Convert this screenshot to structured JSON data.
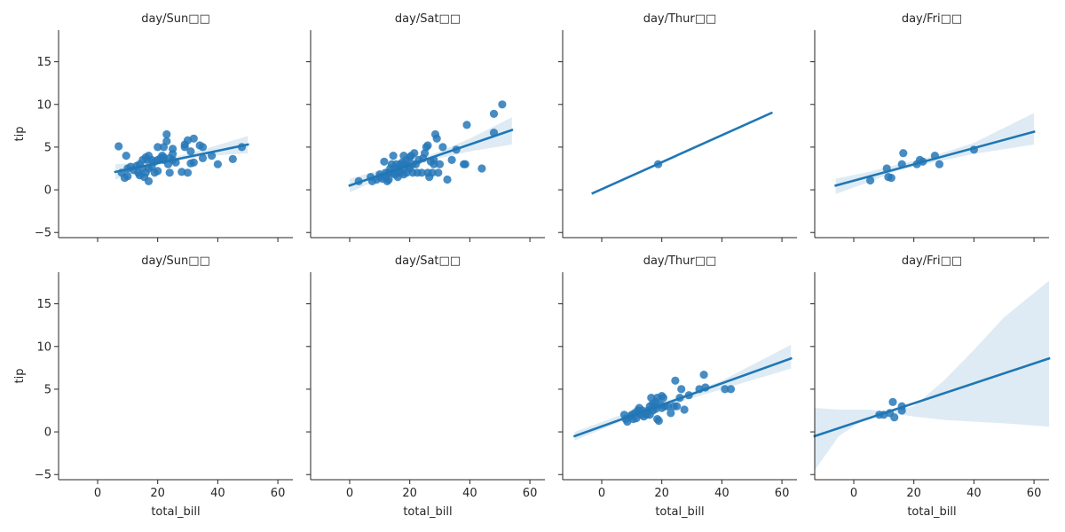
{
  "figure": {
    "colors": {
      "line": "#1f77b4",
      "point": "#2778b8",
      "band": "#1f77b4",
      "axis": "#262626"
    }
  },
  "chart_data": [
    {
      "type": "scatter",
      "title": "day/Sun□□",
      "xlabel": "",
      "ylabel": "tip",
      "xlim": [
        -13,
        65
      ],
      "ylim": [
        -5.6,
        18.7
      ],
      "xticks": [
        0,
        20,
        40,
        60
      ],
      "yticks": [
        -5,
        0,
        5,
        10,
        15
      ],
      "show_xtick_labels": false,
      "show_ytick_labels": true,
      "regression": {
        "x": [
          5.9,
          50
        ],
        "y": [
          2.1,
          5.3
        ]
      },
      "band": {
        "x": [
          5.9,
          15,
          25,
          35,
          50
        ],
        "lower": [
          1.2,
          2.4,
          3.3,
          3.9,
          4.3
        ],
        "upper": [
          3.0,
          3.2,
          3.8,
          4.7,
          6.3
        ]
      },
      "points": [
        [
          7,
          5.1
        ],
        [
          8,
          2
        ],
        [
          9,
          1.4
        ],
        [
          9.5,
          4
        ],
        [
          10,
          2.5
        ],
        [
          10,
          1.6
        ],
        [
          11,
          2.7
        ],
        [
          12,
          2.3
        ],
        [
          13,
          2.8
        ],
        [
          13.5,
          2
        ],
        [
          14,
          3
        ],
        [
          14,
          1.7
        ],
        [
          15,
          2.5
        ],
        [
          15,
          3.5
        ],
        [
          15.5,
          1.5
        ],
        [
          16,
          2
        ],
        [
          16,
          3.8
        ],
        [
          16.5,
          3.5
        ],
        [
          17,
          1
        ],
        [
          17,
          2.5
        ],
        [
          17,
          4
        ],
        [
          18,
          3.5
        ],
        [
          18,
          2.7
        ],
        [
          19,
          2
        ],
        [
          19,
          3.3
        ],
        [
          20,
          2.2
        ],
        [
          20,
          3.5
        ],
        [
          20,
          5
        ],
        [
          21,
          3.7
        ],
        [
          21.5,
          4
        ],
        [
          22,
          3.5
        ],
        [
          22,
          5
        ],
        [
          22,
          3.8
        ],
        [
          23,
          5.7
        ],
        [
          23,
          6.5
        ],
        [
          23.5,
          3
        ],
        [
          24,
          2
        ],
        [
          24,
          3.7
        ],
        [
          25,
          4.8
        ],
        [
          25,
          3.5
        ],
        [
          25,
          4.2
        ],
        [
          26,
          3.2
        ],
        [
          28,
          2.1
        ],
        [
          29,
          5
        ],
        [
          29,
          5.3
        ],
        [
          30,
          2
        ],
        [
          30,
          5.8
        ],
        [
          31,
          4.5
        ],
        [
          31,
          3.1
        ],
        [
          32,
          6
        ],
        [
          32,
          3.2
        ],
        [
          34,
          5.2
        ],
        [
          35,
          5
        ],
        [
          35,
          3.7
        ],
        [
          38,
          4
        ],
        [
          40,
          3
        ],
        [
          45,
          3.6
        ],
        [
          48,
          5
        ]
      ]
    },
    {
      "type": "scatter",
      "title": "day/Sat□□",
      "xlabel": "",
      "ylabel": "",
      "xlim": [
        -13,
        65
      ],
      "ylim": [
        -5.6,
        18.7
      ],
      "xticks": [
        0,
        20,
        40,
        60
      ],
      "yticks": [
        -5,
        0,
        5,
        10,
        15
      ],
      "show_xtick_labels": false,
      "show_ytick_labels": false,
      "regression": {
        "x": [
          0,
          54
        ],
        "y": [
          0.5,
          7.0
        ]
      },
      "band": {
        "x": [
          0,
          10,
          20,
          30,
          40,
          54
        ],
        "lower": [
          -0.3,
          1.3,
          2.7,
          3.7,
          4.5,
          5.3
        ],
        "upper": [
          1.3,
          2.3,
          3.2,
          4.5,
          6.0,
          8.5
        ]
      },
      "points": [
        [
          3,
          1
        ],
        [
          7,
          1.5
        ],
        [
          7.5,
          1
        ],
        [
          9,
          1.2
        ],
        [
          10,
          1.5
        ],
        [
          10,
          1.8
        ],
        [
          11,
          1.3
        ],
        [
          11.5,
          3.3
        ],
        [
          12,
          2
        ],
        [
          12,
          1.5
        ],
        [
          12.5,
          1
        ],
        [
          13,
          2
        ],
        [
          13,
          1.2
        ],
        [
          13.5,
          2.5
        ],
        [
          14,
          3
        ],
        [
          14,
          2
        ],
        [
          14.5,
          4
        ],
        [
          15,
          1.8
        ],
        [
          15,
          2.6
        ],
        [
          15.5,
          3
        ],
        [
          16,
          2
        ],
        [
          16,
          1.5
        ],
        [
          16.5,
          2.5
        ],
        [
          17,
          3
        ],
        [
          17,
          2
        ],
        [
          17.5,
          3.2
        ],
        [
          18,
          1.8
        ],
        [
          18,
          2.5
        ],
        [
          18,
          4
        ],
        [
          18.5,
          3
        ],
        [
          19,
          2
        ],
        [
          19,
          3.5
        ],
        [
          19.5,
          2.8
        ],
        [
          20,
          3.8
        ],
        [
          20,
          2.5
        ],
        [
          20.5,
          4
        ],
        [
          21,
          3
        ],
        [
          21,
          2
        ],
        [
          21.5,
          4.3
        ],
        [
          22,
          3
        ],
        [
          22.5,
          2
        ],
        [
          23,
          3.5
        ],
        [
          24,
          2
        ],
        [
          24.5,
          3.7
        ],
        [
          25,
          4.3
        ],
        [
          25.5,
          5
        ],
        [
          26,
          2
        ],
        [
          26,
          5.2
        ],
        [
          26.5,
          1.5
        ],
        [
          27,
          3.3
        ],
        [
          27.5,
          2
        ],
        [
          28,
          3
        ],
        [
          28,
          3.5
        ],
        [
          28.5,
          6.5
        ],
        [
          29,
          6
        ],
        [
          29.5,
          2
        ],
        [
          30,
          3
        ],
        [
          31,
          5
        ],
        [
          32.5,
          1.2
        ],
        [
          34,
          3.5
        ],
        [
          35.5,
          4.7
        ],
        [
          38,
          3
        ],
        [
          38.5,
          3
        ],
        [
          39,
          7.6
        ],
        [
          44,
          2.5
        ],
        [
          48,
          8.9
        ],
        [
          48,
          6.7
        ],
        [
          50.8,
          10
        ]
      ]
    },
    {
      "type": "scatter",
      "title": "day/Thur□□",
      "xlabel": "",
      "ylabel": "",
      "xlim": [
        -13,
        65
      ],
      "ylim": [
        -5.6,
        18.7
      ],
      "xticks": [
        0,
        20,
        40,
        60
      ],
      "yticks": [
        -5,
        0,
        5,
        10,
        15
      ],
      "show_xtick_labels": false,
      "show_ytick_labels": false,
      "regression": {
        "x": [
          -3,
          56.5
        ],
        "y": [
          -0.4,
          9.0
        ]
      },
      "band": null,
      "points": [
        [
          18.8,
          3
        ]
      ]
    },
    {
      "type": "scatter",
      "title": "day/Fri□□",
      "xlabel": "",
      "ylabel": "",
      "xlim": [
        -13,
        65
      ],
      "ylim": [
        -5.6,
        18.7
      ],
      "xticks": [
        0,
        20,
        40,
        60
      ],
      "yticks": [
        -5,
        0,
        5,
        10,
        15
      ],
      "show_xtick_labels": false,
      "show_ytick_labels": false,
      "regression": {
        "x": [
          -6,
          60
        ],
        "y": [
          0.5,
          6.8
        ]
      },
      "band": {
        "x": [
          -6,
          5,
          15,
          25,
          40,
          60
        ],
        "lower": [
          -0.5,
          0.9,
          2.3,
          3.1,
          4.2,
          5.3
        ],
        "upper": [
          1.3,
          2.1,
          3.0,
          3.8,
          5.5,
          9.0
        ]
      },
      "points": [
        [
          5.5,
          1.1
        ],
        [
          11,
          2.5
        ],
        [
          11.5,
          1.5
        ],
        [
          12.5,
          1.4
        ],
        [
          16,
          3
        ],
        [
          16.5,
          4.3
        ],
        [
          21,
          3
        ],
        [
          22,
          3.5
        ],
        [
          23,
          3.3
        ],
        [
          27,
          4
        ],
        [
          28.5,
          3
        ],
        [
          40,
          4.7
        ]
      ]
    },
    {
      "type": "scatter",
      "title": "day/Sun□□",
      "xlabel": "total_bill",
      "ylabel": "tip",
      "xlim": [
        -13,
        65
      ],
      "ylim": [
        -5.6,
        18.7
      ],
      "xticks": [
        0,
        20,
        40,
        60
      ],
      "yticks": [
        -5,
        0,
        5,
        10,
        15
      ],
      "show_xtick_labels": true,
      "show_ytick_labels": true,
      "regression": null,
      "band": null,
      "points": []
    },
    {
      "type": "scatter",
      "title": "day/Sat□□",
      "xlabel": "total_bill",
      "ylabel": "",
      "xlim": [
        -13,
        65
      ],
      "ylim": [
        -5.6,
        18.7
      ],
      "xticks": [
        0,
        20,
        40,
        60
      ],
      "yticks": [
        -5,
        0,
        5,
        10,
        15
      ],
      "show_xtick_labels": true,
      "show_ytick_labels": false,
      "regression": null,
      "band": null,
      "points": []
    },
    {
      "type": "scatter",
      "title": "day/Thur□□",
      "xlabel": "total_bill",
      "ylabel": "",
      "xlim": [
        -13,
        65
      ],
      "ylim": [
        -5.6,
        18.7
      ],
      "xticks": [
        0,
        20,
        40,
        60
      ],
      "yticks": [
        -5,
        0,
        5,
        10,
        15
      ],
      "show_xtick_labels": true,
      "show_ytick_labels": false,
      "regression": {
        "x": [
          -9,
          63
        ],
        "y": [
          -0.5,
          8.6
        ]
      },
      "band": {
        "x": [
          -9,
          5,
          15,
          25,
          40,
          63
        ],
        "lower": [
          -1.0,
          1.0,
          2.5,
          3.4,
          5.0,
          7.4
        ],
        "upper": [
          0.0,
          1.8,
          3.0,
          4.0,
          6.0,
          10.2
        ]
      },
      "points": [
        [
          7.5,
          2
        ],
        [
          8,
          1.5
        ],
        [
          8.5,
          1.2
        ],
        [
          9.5,
          1.8
        ],
        [
          10,
          2
        ],
        [
          10.5,
          1.5
        ],
        [
          11,
          2.2
        ],
        [
          11.5,
          1.6
        ],
        [
          12,
          2.5
        ],
        [
          12.5,
          2.3
        ],
        [
          12.5,
          2.8
        ],
        [
          13,
          2
        ],
        [
          13.5,
          2.5
        ],
        [
          14,
          1.8
        ],
        [
          14.5,
          2.2
        ],
        [
          15,
          2
        ],
        [
          15.5,
          2.5
        ],
        [
          16,
          3
        ],
        [
          16,
          2
        ],
        [
          16.5,
          4
        ],
        [
          17,
          2.5
        ],
        [
          17,
          3.3
        ],
        [
          17.5,
          3
        ],
        [
          18,
          3.5
        ],
        [
          18,
          2.7
        ],
        [
          18.5,
          4
        ],
        [
          18.5,
          1.5
        ],
        [
          19,
          1.3
        ],
        [
          19.5,
          3.2
        ],
        [
          20,
          4.2
        ],
        [
          20,
          2.8
        ],
        [
          20.5,
          4
        ],
        [
          21,
          3
        ],
        [
          22,
          3
        ],
        [
          23,
          2.2
        ],
        [
          24,
          3
        ],
        [
          24.5,
          6
        ],
        [
          25,
          3
        ],
        [
          26,
          4
        ],
        [
          26.5,
          5
        ],
        [
          27.5,
          2.6
        ],
        [
          29,
          4.3
        ],
        [
          32.5,
          5
        ],
        [
          34,
          6.7
        ],
        [
          34.5,
          5.2
        ],
        [
          41,
          5
        ],
        [
          43,
          5
        ]
      ]
    },
    {
      "type": "scatter",
      "title": "day/Fri□□",
      "xlabel": "total_bill",
      "ylabel": "",
      "xlim": [
        -13,
        65
      ],
      "ylim": [
        -5.6,
        18.7
      ],
      "xticks": [
        0,
        20,
        40,
        60
      ],
      "yticks": [
        -5,
        0,
        5,
        10,
        15
      ],
      "show_xtick_labels": true,
      "show_ytick_labels": false,
      "regression": {
        "x": [
          -13,
          65
        ],
        "y": [
          -0.5,
          8.6
        ]
      },
      "band": {
        "x": [
          -13,
          -5,
          5,
          12,
          20,
          30,
          40,
          50,
          65
        ],
        "lower": [
          -4.5,
          -0.5,
          1.8,
          2.2,
          1.8,
          1.4,
          1.2,
          1.0,
          0.6
        ],
        "upper": [
          2.8,
          2.6,
          2.6,
          2.4,
          3.0,
          6.0,
          9.6,
          13.4,
          17.7
        ]
      },
      "points": [
        [
          8.5,
          2
        ],
        [
          10,
          2
        ],
        [
          12,
          2.2
        ],
        [
          13,
          3.5
        ],
        [
          13.5,
          1.7
        ],
        [
          16,
          3
        ],
        [
          16,
          2.5
        ]
      ]
    }
  ]
}
